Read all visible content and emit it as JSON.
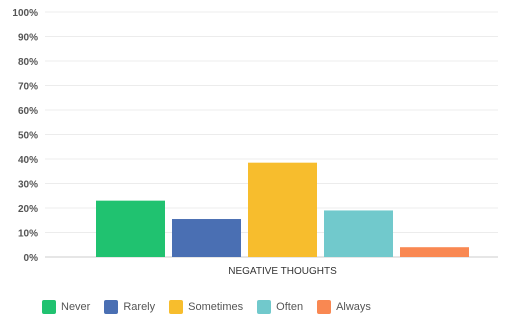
{
  "chart_data": {
    "type": "bar",
    "categories": [
      "NEGATIVE THOUGHTS"
    ],
    "series": [
      {
        "name": "Never",
        "values": [
          23
        ],
        "color": "#20c270"
      },
      {
        "name": "Rarely",
        "values": [
          15.5
        ],
        "color": "#4a6fb3"
      },
      {
        "name": "Sometimes",
        "values": [
          38.5
        ],
        "color": "#f7bd2d"
      },
      {
        "name": "Often",
        "values": [
          19
        ],
        "color": "#71c9cc"
      },
      {
        "name": "Always",
        "values": [
          4
        ],
        "color": "#f98852"
      }
    ],
    "y_ticks": [
      "0%",
      "10%",
      "20%",
      "30%",
      "40%",
      "50%",
      "60%",
      "70%",
      "80%",
      "90%",
      "100%"
    ],
    "ylim": [
      0,
      100
    ],
    "grid": true,
    "legend_position": "bottom-left"
  }
}
